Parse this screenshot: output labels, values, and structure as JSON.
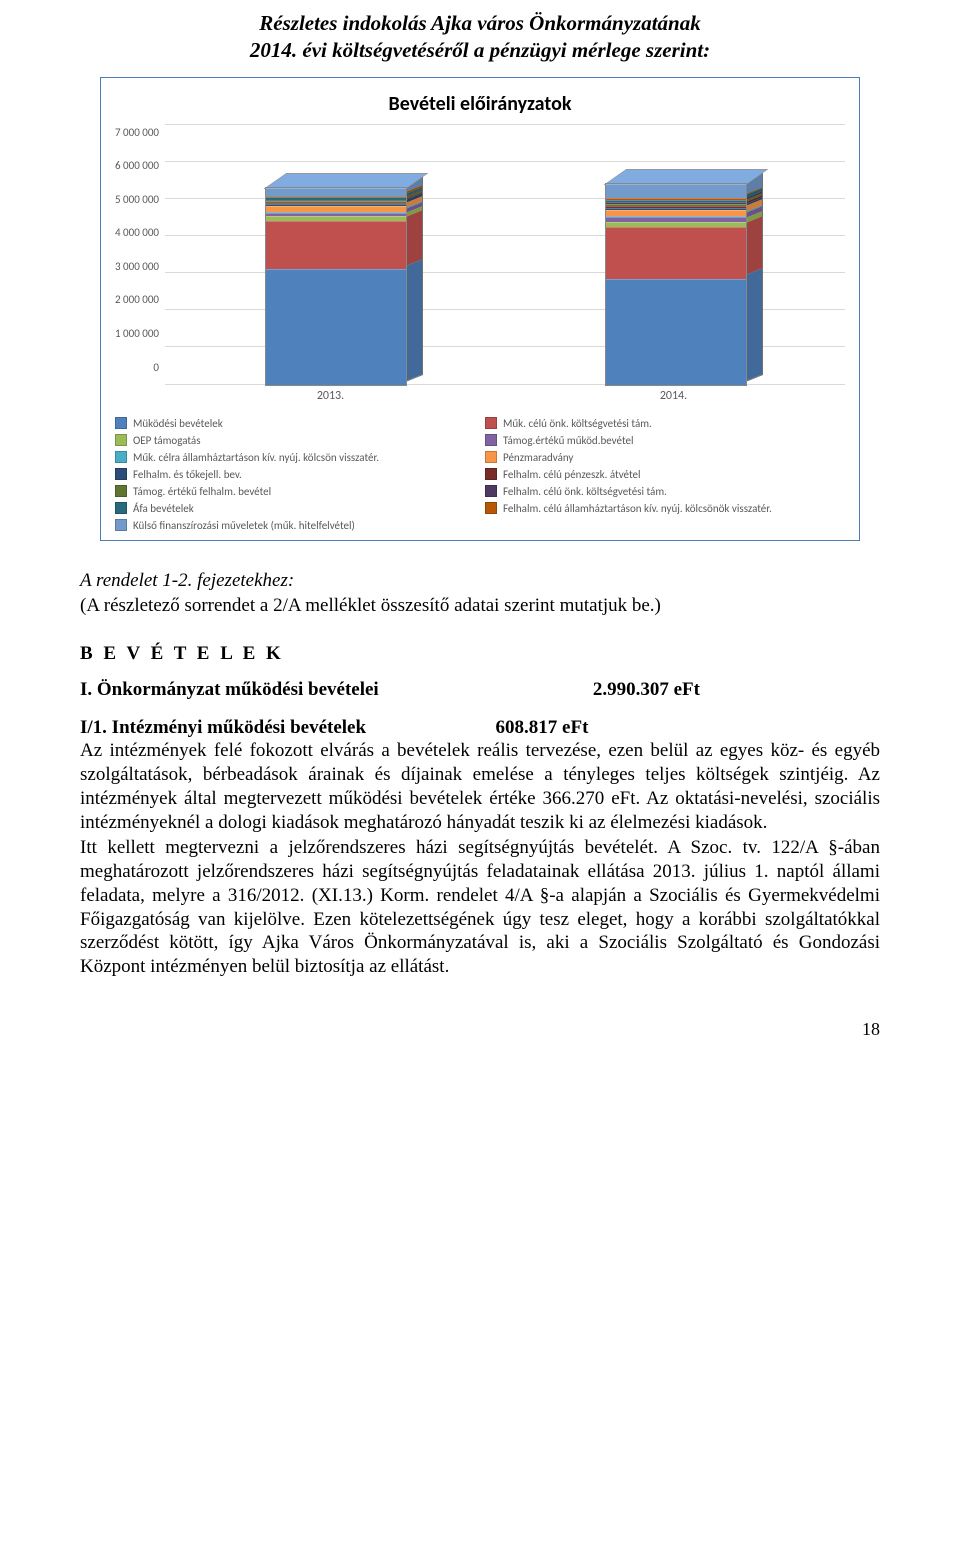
{
  "title": {
    "line1": "Részletes indokolás Ajka város Önkormányzatának",
    "line2": "2014. évi költségvetéséről a pénzügyi mérlege szerint:"
  },
  "chart": {
    "title": "Bevételi előirányzatok",
    "type": "stacked-bar-3d",
    "y_ticks": [
      "7 000 000",
      "6 000 000",
      "5 000 000",
      "4 000 000",
      "3 000 000",
      "2 000 000",
      "1 000 000",
      "0"
    ],
    "y_max": 7000000,
    "categories": [
      "2013.",
      "2014."
    ],
    "series": [
      {
        "key": "mukodesi_bev",
        "label": "Müködési bevételek",
        "color": "#4f81bd"
      },
      {
        "key": "muk_celu_onk",
        "label": "Műk. célú önk. költségvetési tám.",
        "color": "#c0504d"
      },
      {
        "key": "oep",
        "label": "OEP támogatás",
        "color": "#9bbb59"
      },
      {
        "key": "tamog_ert_muk",
        "label": "Támog.értékű működ.bevétel",
        "color": "#8064a2"
      },
      {
        "key": "muk_celra_allam",
        "label": "Műk. célra államháztartáson kív. nyúj. kölcsön visszatér.",
        "color": "#4bacc6"
      },
      {
        "key": "penzmaradvany",
        "label": "Pénzmaradvány",
        "color": "#f79646"
      },
      {
        "key": "felhalm_tokejell",
        "label": "Felhalm. és tőkejell. bev.",
        "color": "#2c4d75"
      },
      {
        "key": "felhalm_celu_penz",
        "label": "Felhalm. célú pénzeszk. átvétel",
        "color": "#772c2a"
      },
      {
        "key": "tamog_ert_felh",
        "label": "Támog. értékű felhalm. bevétel",
        "color": "#5f7530"
      },
      {
        "key": "felhalm_celu_onk",
        "label": "Felhalm. célú önk. költségvetési tám.",
        "color": "#4d3b62"
      },
      {
        "key": "afa",
        "label": "Áfa bevételek",
        "color": "#276a7c"
      },
      {
        "key": "felhalm_celu_allam",
        "label": "Felhalm. célú államháztartáson kív. nyúj. kölcsönök visszatér.",
        "color": "#b65708"
      },
      {
        "key": "kulso_fin",
        "label": "Külső finanszírozási műveletek (műk. hitelfelvétel)",
        "color": "#729aca"
      }
    ],
    "data": {
      "2013.": {
        "mukodesi_bev": 3100000,
        "muk_celu_onk": 1300000,
        "oep": 130000,
        "tamog_ert_muk": 90000,
        "muk_celra_allam": 30000,
        "penzmaradvany": 150000,
        "felhalm_tokejell": 60000,
        "felhalm_celu_penz": 40000,
        "tamog_ert_felh": 50000,
        "felhalm_celu_onk": 30000,
        "afa": 60000,
        "felhalm_celu_allam": 40000,
        "kulso_fin": 220000
      },
      "2014.": {
        "mukodesi_bev": 2850000,
        "muk_celu_onk": 1400000,
        "oep": 140000,
        "tamog_ert_muk": 110000,
        "muk_celra_allam": 35000,
        "penzmaradvany": 160000,
        "felhalm_tokejell": 70000,
        "felhalm_celu_penz": 50000,
        "tamog_ert_felh": 60000,
        "felhalm_celu_onk": 40000,
        "afa": 70000,
        "felhalm_celu_allam": 45000,
        "kulso_fin": 370000
      }
    },
    "grid_color": "#d9d9d9",
    "axis_color": "#888888",
    "background": "#ffffff",
    "frame_border": "#4a7ebb",
    "label_fontsize": 11
  },
  "section": {
    "heading_italic": "A rendelet 1-2. fejezetekhez:",
    "subtext": "(A részletező sorrendet a 2/A melléklet összesítő adatai szerint mutatjuk be.)"
  },
  "bevetelek_title": "B E V É T E L E K",
  "line1": {
    "label": "I. Önkormányzat működési bevételei",
    "value": "2.990.307 eFt"
  },
  "line2": {
    "label": "I/1. Intézményi működési bevételek",
    "value": "608.817 eFt"
  },
  "paragraph1": "Az intézmények felé fokozott elvárás a bevételek reális tervezése, ezen belül az egyes köz- és egyéb szolgáltatások, bérbeadások árainak és díjainak emelése a tényleges teljes költségek szintjéig. Az intézmények által megtervezett működési bevételek értéke 366.270 eFt. Az oktatási-nevelési, szociális intézményeknél a dologi kiadások meghatározó hányadát teszik ki az élelmezési kiadások.",
  "paragraph2": "Itt kellett megtervezni a jelzőrendszeres házi segítségnyújtás bevételét. A Szoc. tv. 122/A §-ában meghatározott jelzőrendszeres házi segítségnyújtás feladatainak ellátása 2013. július 1. naptól állami feladata, melyre a 316/2012. (XI.13.) Korm. rendelet 4/A §-a alapján a Szociális és Gyermekvédelmi Főigazgatóság van kijelölve. Ezen kötelezettségének úgy tesz eleget, hogy a korábbi szolgáltatókkal szerződést kötött, így Ajka Város Önkormányzatával is, aki a Szociális Szolgáltató és Gondozási Központ intézményen belül biztosítja az ellátást.",
  "page_number": "18"
}
